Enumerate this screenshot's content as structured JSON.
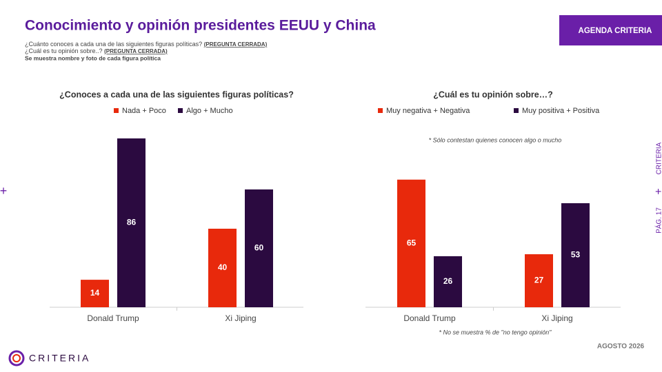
{
  "header": {
    "title": "Conocimiento y opinión presidentes EEUU y China",
    "questions": [
      {
        "text": "¿Cuánto conoces a cada una de las siguientes figuras políticas?",
        "tag": "(PREGUNTA CERRADA)"
      },
      {
        "text": "¿Cuál es tu opinión sobre..?",
        "tag": "(PREGUNTA CERRADA)"
      }
    ],
    "note": "Se muestra nombre y foto de cada figura política",
    "badge": "AGENDA CRITERIA"
  },
  "chart_data": [
    {
      "type": "bar",
      "title": "¿Conoces a cada una de las siguientes figuras políticas?",
      "categories": [
        "Donald Trump",
        "Xi Jiping"
      ],
      "series": [
        {
          "name": "Nada + Poco",
          "color": "#e8290c",
          "values": [
            14,
            40
          ]
        },
        {
          "name": "Algo + Mucho",
          "color": "#2b0a40",
          "values": [
            86,
            60
          ]
        }
      ]
    },
    {
      "type": "bar",
      "title": "¿Cuál es tu opinión sobre…?",
      "annotation": "* Sólo contestan quienes conocen algo o mucho",
      "footnote": "* No se muestra % de \"no tengo opinión\"",
      "categories": [
        "Donald Trump",
        "Xi Jiping"
      ],
      "series": [
        {
          "name": "Muy negativa + Negativa",
          "color": "#e8290c",
          "values": [
            65,
            27
          ]
        },
        {
          "name": "Muy positiva + Positiva",
          "color": "#2b0a40",
          "values": [
            26,
            53
          ]
        }
      ]
    }
  ],
  "footer": {
    "date": "AGOSTO 2026",
    "brand": "CRITERIA",
    "side_brand": "CRITERIA",
    "page": "PÁG. 17"
  }
}
